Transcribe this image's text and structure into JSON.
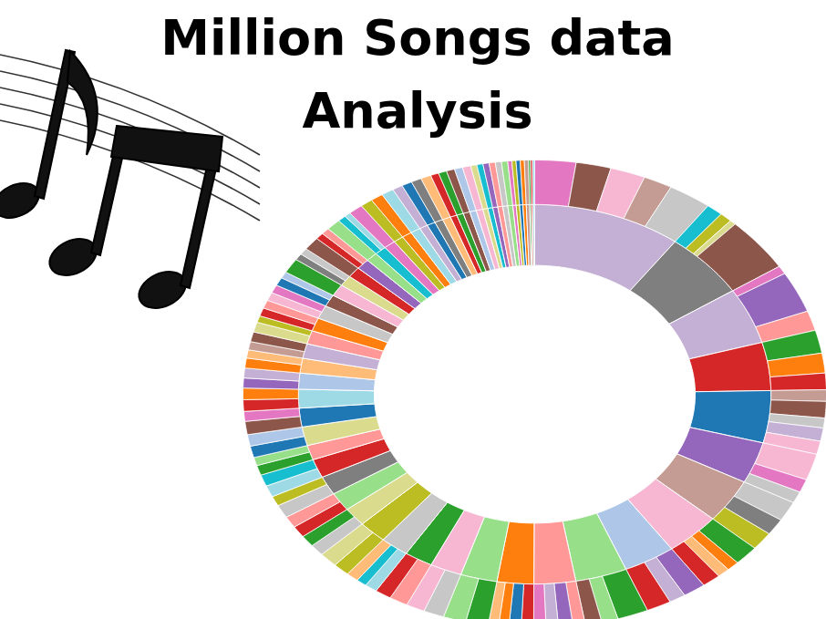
{
  "chart_data": {
    "type": "sunburst",
    "title": "Million Songs data Analysis",
    "tick_labels": false,
    "segments": [
      {
        "color": "#c5b0d5",
        "children": [
          {
            "color": "#e377c2",
            "value": 2.0
          },
          {
            "color": "#8c564b",
            "value": 1.7
          },
          {
            "color": "#f7b6d2",
            "value": 1.7
          },
          {
            "color": "#c49c94",
            "value": 1.4
          },
          {
            "color": "#c7c7c7",
            "value": 2.1
          }
        ]
      },
      {
        "color": "#7f7f7f",
        "children": [
          {
            "color": "#17becf",
            "value": 0.8
          },
          {
            "color": "#bcbd22",
            "value": 0.6
          },
          {
            "color": "#dbdb8d",
            "value": 0.3
          },
          {
            "color": "#8c564b",
            "value": 3.3
          }
        ]
      },
      {
        "color": "#c5b0d5",
        "children": [
          {
            "color": "#e377c2",
            "value": 0.5
          },
          {
            "color": "#9467bd",
            "value": 2.5
          },
          {
            "color": "#ff9896",
            "value": 1.2
          }
        ]
      },
      {
        "color": "#d62728",
        "children": [
          {
            "color": "#2ca02c",
            "value": 1.4
          },
          {
            "color": "#ff7f0e",
            "value": 1.2
          },
          {
            "color": "#d62728",
            "value": 1.0
          }
        ]
      },
      {
        "color": "#1f77b4",
        "children": [
          {
            "color": "#c49c94",
            "value": 0.7
          },
          {
            "color": "#8c564b",
            "value": 1.0
          },
          {
            "color": "#c7c7c7",
            "value": 0.6
          },
          {
            "color": "#c5b0d5",
            "value": 0.8
          },
          {
            "color": "#f7b6d2",
            "value": 0.8
          }
        ]
      },
      {
        "color": "#9467bd",
        "children": [
          {
            "color": "#f7b6d2",
            "value": 1.6
          },
          {
            "color": "#e377c2",
            "value": 0.8
          },
          {
            "color": "#c7c7c7",
            "value": 0.7
          }
        ]
      },
      {
        "color": "#c49c94",
        "children": [
          {
            "color": "#c7c7c7",
            "value": 1.2
          },
          {
            "color": "#7f7f7f",
            "value": 1.0
          },
          {
            "color": "#bcbd22",
            "value": 1.1
          }
        ]
      },
      {
        "color": "#f7b6d2",
        "children": [
          {
            "color": "#2ca02c",
            "value": 1.2
          },
          {
            "color": "#ff7f0e",
            "value": 0.6
          },
          {
            "color": "#ffbb78",
            "value": 0.6
          },
          {
            "color": "#d62728",
            "value": 0.9
          }
        ]
      },
      {
        "color": "#aec7e8",
        "children": [
          {
            "color": "#9467bd",
            "value": 1.1
          },
          {
            "color": "#c5b0d5",
            "value": 0.8
          },
          {
            "color": "#d62728",
            "value": 1.2
          }
        ]
      },
      {
        "color": "#98df8a",
        "children": [
          {
            "color": "#2ca02c",
            "value": 1.5
          },
          {
            "color": "#98df8a",
            "value": 0.8
          },
          {
            "color": "#8c564b",
            "value": 0.8
          }
        ]
      },
      {
        "color": "#ff9896",
        "children": [
          {
            "color": "#ff9896",
            "value": 0.6
          },
          {
            "color": "#9467bd",
            "value": 0.7
          },
          {
            "color": "#c5b0d5",
            "value": 0.6
          },
          {
            "color": "#e377c2",
            "value": 0.6
          }
        ]
      },
      {
        "color": "#ff7f0e",
        "children": [
          {
            "color": "#d62728",
            "value": 0.6
          },
          {
            "color": "#1f77b4",
            "value": 0.6
          },
          {
            "color": "#ff7f0e",
            "value": 0.5
          },
          {
            "color": "#ffbb78",
            "value": 0.5
          }
        ]
      },
      {
        "color": "#98df8a",
        "children": [
          {
            "color": "#2ca02c",
            "value": 1.1
          },
          {
            "color": "#98df8a",
            "value": 1.1
          }
        ]
      },
      {
        "color": "#f7b6d2",
        "children": [
          {
            "color": "#c7c7c7",
            "value": 1.0
          },
          {
            "color": "#f7b6d2",
            "value": 0.9
          }
        ]
      },
      {
        "color": "#2ca02c",
        "children": [
          {
            "color": "#ff9896",
            "value": 0.9
          },
          {
            "color": "#d62728",
            "value": 0.8
          }
        ]
      },
      {
        "color": "#c7c7c7",
        "children": [
          {
            "color": "#9edae5",
            "value": 0.6
          },
          {
            "color": "#17becf",
            "value": 0.5
          },
          {
            "color": "#ffbb78",
            "value": 0.6
          }
        ]
      },
      {
        "color": "#bcbd22",
        "children": [
          {
            "color": "#bcbd22",
            "value": 0.8
          },
          {
            "color": "#dbdb8d",
            "value": 0.9
          }
        ]
      },
      {
        "color": "#dbdb8d",
        "children": [
          {
            "color": "#c7c7c7",
            "value": 0.7
          },
          {
            "color": "#2ca02c",
            "value": 0.7
          }
        ]
      },
      {
        "color": "#98df8a",
        "children": [
          {
            "color": "#d62728",
            "value": 0.7
          },
          {
            "color": "#ff9896",
            "value": 0.7
          }
        ]
      },
      {
        "color": "#7f7f7f",
        "children": [
          {
            "color": "#c7c7c7",
            "value": 0.8
          },
          {
            "color": "#bcbd22",
            "value": 0.6
          }
        ]
      },
      {
        "color": "#d62728",
        "children": [
          {
            "color": "#9edae5",
            "value": 0.7
          },
          {
            "color": "#17becf",
            "value": 0.7
          }
        ]
      },
      {
        "color": "#ff9896",
        "children": [
          {
            "color": "#2ca02c",
            "value": 0.6
          },
          {
            "color": "#98df8a",
            "value": 0.5
          }
        ]
      },
      {
        "color": "#dbdb8d",
        "children": [
          {
            "color": "#1f77b4",
            "value": 0.7
          },
          {
            "color": "#aec7e8",
            "value": 0.7
          }
        ]
      },
      {
        "color": "#1f77b4",
        "children": [
          {
            "color": "#8c564b",
            "value": 0.8
          },
          {
            "color": "#e377c2",
            "value": 0.6
          }
        ]
      },
      {
        "color": "#9edae5",
        "children": [
          {
            "color": "#d62728",
            "value": 0.7
          },
          {
            "color": "#ff7f0e",
            "value": 0.7
          }
        ]
      },
      {
        "color": "#aec7e8",
        "children": [
          {
            "color": "#9467bd",
            "value": 0.6
          },
          {
            "color": "#c5b0d5",
            "value": 0.6
          }
        ]
      },
      {
        "color": "#ffbb78",
        "children": [
          {
            "color": "#ff7f0e",
            "value": 0.6
          },
          {
            "color": "#ffbb78",
            "value": 0.5
          }
        ]
      },
      {
        "color": "#c5b0d5",
        "children": [
          {
            "color": "#c49c94",
            "value": 0.5
          },
          {
            "color": "#8c564b",
            "value": 0.6
          }
        ]
      },
      {
        "color": "#ff9896",
        "children": [
          {
            "color": "#dbdb8d",
            "value": 0.6
          },
          {
            "color": "#bcbd22",
            "value": 0.4
          }
        ]
      },
      {
        "color": "#ff7f0e",
        "children": [
          {
            "color": "#d62728",
            "value": 0.5
          },
          {
            "color": "#ff9896",
            "value": 0.5
          }
        ]
      },
      {
        "color": "#c7c7c7",
        "children": [
          {
            "color": "#f7b6d2",
            "value": 0.5
          },
          {
            "color": "#e377c2",
            "value": 0.5
          }
        ]
      },
      {
        "color": "#8c564b",
        "children": [
          {
            "color": "#1f77b4",
            "value": 0.5
          },
          {
            "color": "#aec7e8",
            "value": 0.4
          }
        ]
      },
      {
        "color": "#f7b6d2",
        "children": [
          {
            "color": "#2ca02c",
            "value": 0.9
          }
        ]
      },
      {
        "color": "#dbdb8d",
        "children": [
          {
            "color": "#7f7f7f",
            "value": 0.4
          },
          {
            "color": "#c7c7c7",
            "value": 0.4
          }
        ]
      },
      {
        "color": "#d62728",
        "children": [
          {
            "color": "#8c564b",
            "value": 0.8
          }
        ]
      },
      {
        "color": "#9467bd",
        "children": [
          {
            "color": "#d62728",
            "value": 0.4
          },
          {
            "color": "#ff9896",
            "value": 0.4
          }
        ]
      },
      {
        "color": "#98df8a",
        "children": [
          {
            "color": "#98df8a",
            "value": 0.7
          }
        ]
      },
      {
        "color": "#17becf",
        "children": [
          {
            "color": "#17becf",
            "value": 0.4
          },
          {
            "color": "#9edae5",
            "value": 0.3
          }
        ]
      },
      {
        "color": "#e377c2",
        "children": [
          {
            "color": "#e377c2",
            "value": 0.7
          }
        ]
      },
      {
        "color": "#bcbd22",
        "children": [
          {
            "color": "#bcbd22",
            "value": 0.6
          }
        ]
      },
      {
        "color": "#ff7f0e",
        "children": [
          {
            "color": "#ff7f0e",
            "value": 0.6
          }
        ]
      },
      {
        "color": "#9edae5",
        "children": [
          {
            "color": "#9edae5",
            "value": 0.6
          }
        ]
      },
      {
        "color": "#c5b0d5",
        "children": [
          {
            "color": "#c5b0d5",
            "value": 0.5
          }
        ]
      },
      {
        "color": "#1f77b4",
        "children": [
          {
            "color": "#1f77b4",
            "value": 0.5
          }
        ]
      },
      {
        "color": "#7f7f7f",
        "children": [
          {
            "color": "#7f7f7f",
            "value": 0.5
          }
        ]
      },
      {
        "color": "#ffbb78",
        "children": [
          {
            "color": "#ffbb78",
            "value": 0.5
          }
        ]
      },
      {
        "color": "#d62728",
        "children": [
          {
            "color": "#d62728",
            "value": 0.4
          }
        ]
      },
      {
        "color": "#2ca02c",
        "children": [
          {
            "color": "#2ca02c",
            "value": 0.4
          }
        ]
      },
      {
        "color": "#8c564b",
        "children": [
          {
            "color": "#8c564b",
            "value": 0.4
          }
        ]
      },
      {
        "color": "#aec7e8",
        "children": [
          {
            "color": "#aec7e8",
            "value": 0.4
          }
        ]
      },
      {
        "color": "#f7b6d2",
        "children": [
          {
            "color": "#f7b6d2",
            "value": 0.4
          }
        ]
      },
      {
        "color": "#dbdb8d",
        "children": [
          {
            "color": "#dbdb8d",
            "value": 0.3
          }
        ]
      },
      {
        "color": "#17becf",
        "children": [
          {
            "color": "#17becf",
            "value": 0.3
          }
        ]
      },
      {
        "color": "#9467bd",
        "children": [
          {
            "color": "#9467bd",
            "value": 0.3
          }
        ]
      },
      {
        "color": "#ff9896",
        "children": [
          {
            "color": "#ff9896",
            "value": 0.3
          }
        ]
      },
      {
        "color": "#c7c7c7",
        "children": [
          {
            "color": "#c7c7c7",
            "value": 0.3
          }
        ]
      },
      {
        "color": "#98df8a",
        "children": [
          {
            "color": "#98df8a",
            "value": 0.3
          }
        ]
      },
      {
        "color": "#e377c2",
        "children": [
          {
            "color": "#e377c2",
            "value": 0.2
          }
        ]
      },
      {
        "color": "#bcbd22",
        "children": [
          {
            "color": "#bcbd22",
            "value": 0.2
          }
        ]
      },
      {
        "color": "#1f77b4",
        "children": [
          {
            "color": "#1f77b4",
            "value": 0.2
          }
        ]
      },
      {
        "color": "#ff7f0e",
        "children": [
          {
            "color": "#ff7f0e",
            "value": 0.2
          }
        ]
      },
      {
        "color": "#c49c94",
        "children": [
          {
            "color": "#c49c94",
            "value": 0.2
          }
        ]
      },
      {
        "color": "#2ca02c",
        "children": [
          {
            "color": "#2ca02c",
            "value": 0.1
          }
        ]
      },
      {
        "color": "#d62728",
        "children": [
          {
            "color": "#d62728",
            "value": 0.1
          }
        ]
      },
      {
        "color": "#9edae5",
        "children": [
          {
            "color": "#9edae5",
            "value": 0.1
          }
        ]
      }
    ]
  }
}
